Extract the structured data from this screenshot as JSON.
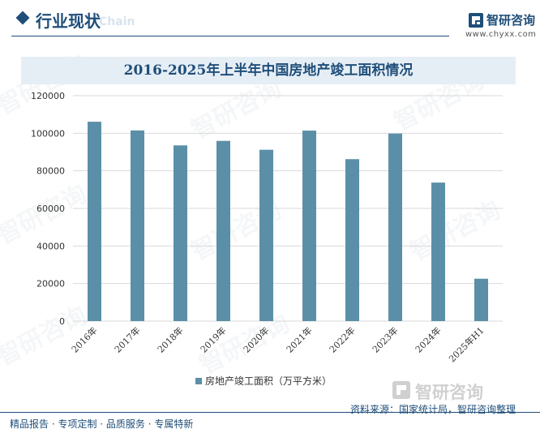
{
  "header": {
    "section_title": "行业现状",
    "section_subtitle": "Chain",
    "brand_name": "智研咨询",
    "brand_url": "www.chyxx.com"
  },
  "chart_data": {
    "type": "bar",
    "title": "2016-2025年上半年中国房地产竣工面积情况",
    "categories": [
      "2016年",
      "2017年",
      "2018年",
      "2019年",
      "2020年",
      "2021年",
      "2022年",
      "2023年",
      "2024年",
      "2025年H1"
    ],
    "series": [
      {
        "name": "房地产竣工面积（万平方米）",
        "values": [
          106128,
          101486,
          93550,
          95942,
          91218,
          101412,
          86222,
          99831,
          73743,
          22567
        ],
        "color": "#5b8fa8"
      }
    ],
    "ylim": [
      0,
      120000
    ],
    "yticks": [
      0,
      20000,
      40000,
      60000,
      80000,
      100000,
      120000
    ],
    "grid": true,
    "legend_position": "bottom"
  },
  "footer": {
    "slogan": "精品报告 · 专项定制 · 品质服务 · 专属特新",
    "source": "资料来源：国家统计局，智研咨询整理",
    "logo_text": "智研咨询"
  },
  "colors": {
    "primary": "#1f4e79",
    "bar": "#5b8fa8",
    "title_bg": "#e6eef5",
    "grid": "#d9d9d9"
  }
}
